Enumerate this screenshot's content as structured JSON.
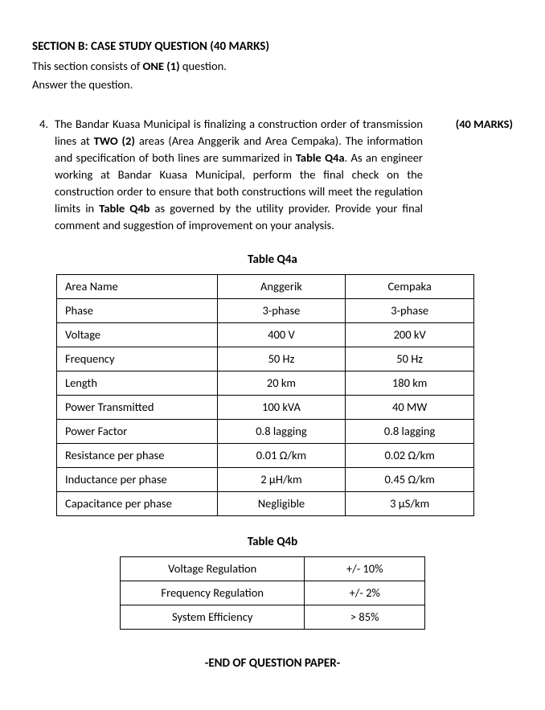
{
  "section": {
    "title": "SECTION B: CASE STUDY QUESTION (40 MARKS)",
    "intro1a": "This section consists of ",
    "intro1b": "ONE (1)",
    "intro1c": " question.",
    "intro2": "Answer the question."
  },
  "question": {
    "num": "4.",
    "marks": "(40 MARKS)",
    "p1a": "The Bandar Kuasa Municipal is finalizing a construction order of transmission lines at ",
    "p1b": "TWO (2)",
    "p1c": " areas (Area Anggerik and Area Cempaka). The information and specification of both lines are summarized in ",
    "p1d": "Table Q4a",
    "p1e": ". As an engineer working at Bandar Kuasa Municipal, perform the final check on the construction order to ensure that both constructions will meet the regulation limits in ",
    "p1f": "Table Q4b",
    "p1g": " as governed by the utility provider. Provide your final comment and suggestion of improvement on your analysis."
  },
  "tableA": {
    "title": "Table Q4a",
    "rows": [
      [
        "Area Name",
        "Anggerik",
        "Cempaka"
      ],
      [
        "Phase",
        "3-phase",
        "3-phase"
      ],
      [
        "Voltage",
        "400 V",
        "200 kV"
      ],
      [
        "Frequency",
        "50 Hz",
        "50 Hz"
      ],
      [
        "Length",
        "20 km",
        "180 km"
      ],
      [
        "Power Transmitted",
        "100 kVA",
        "40 MW"
      ],
      [
        "Power Factor",
        "0.8 lagging",
        "0.8 lagging"
      ],
      [
        "Resistance per phase",
        "0.01 Ω/km",
        "0.02 Ω/km"
      ],
      [
        "Inductance per phase",
        "2 µH/km",
        "0.45 Ω/km"
      ],
      [
        "Capacitance per phase",
        "Negligible",
        "3 µS/km"
      ]
    ]
  },
  "tableB": {
    "title": "Table Q4b",
    "rows": [
      [
        "Voltage Regulation",
        "+/-  10%"
      ],
      [
        "Frequency Regulation",
        "+/-  2%"
      ],
      [
        "System Efficiency",
        "> 85%"
      ]
    ]
  },
  "footer": "-END OF QUESTION PAPER-"
}
